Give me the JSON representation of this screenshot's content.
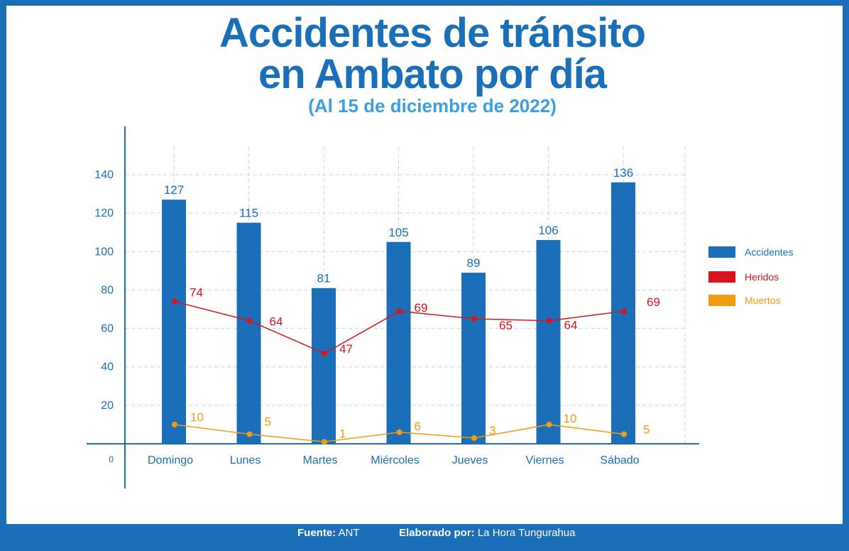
{
  "header": {
    "title_line1": "Accidentes de tránsito",
    "title_line2": "en Ambato por día",
    "subtitle": "(Al 15 de diciembre de 2022)"
  },
  "footer": {
    "source_label": "Fuente:",
    "source_value": "ANT",
    "author_label": "Elaborado por:",
    "author_value": "La Hora Tungurahua"
  },
  "colors": {
    "accent": "#1a6fb8",
    "accidentes": "#1a6fb8",
    "heridos": "#d9141e",
    "muertos": "#f39c12"
  },
  "chart_data": {
    "type": "bar",
    "title": "Accidentes de tránsito en Ambato por día",
    "categories": [
      "Domingo",
      "Lunes",
      "Martes",
      "Miércoles",
      "Jueves",
      "Viernes",
      "Sábado"
    ],
    "series": [
      {
        "name": "Accidentes",
        "type": "bar",
        "color": "#1a6fb8",
        "values": [
          127,
          115,
          81,
          105,
          89,
          106,
          136
        ]
      },
      {
        "name": "Heridos",
        "type": "line",
        "color": "#d9141e",
        "values": [
          74,
          64,
          47,
          69,
          65,
          64,
          69
        ]
      },
      {
        "name": "Muertos",
        "type": "line",
        "color": "#f39c12",
        "values": [
          10,
          5,
          1,
          6,
          3,
          10,
          5
        ]
      }
    ],
    "yticks": [
      0,
      20,
      40,
      60,
      80,
      100,
      120,
      140
    ],
    "ylim": [
      0,
      150
    ],
    "grid": true,
    "legend": "right"
  }
}
